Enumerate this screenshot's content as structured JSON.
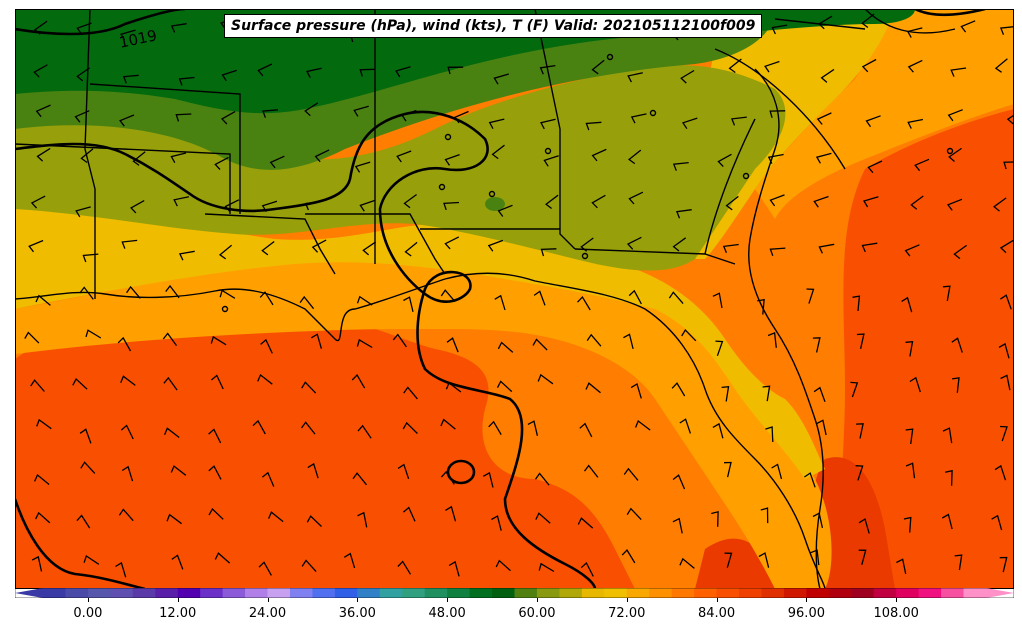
{
  "title": "Surface pressure (hPa), wind (kts), T (F) Valid: 202105112100f009",
  "isobar_label": "1019",
  "colorbar": {
    "min": -6,
    "max": 120,
    "step": 3,
    "ticks": [
      "0.00",
      "12.00",
      "24.00",
      "36.00",
      "48.00",
      "60.00",
      "72.00",
      "84.00",
      "96.00",
      "108.00"
    ],
    "colors": [
      "#3a3aa6",
      "#4a4aa8",
      "#5656ad",
      "#5e4fb0",
      "#5a3aa8",
      "#5a1fa8",
      "#5200b0",
      "#6a30c8",
      "#8a5ad8",
      "#b080e8",
      "#c8a0f0",
      "#8080f0",
      "#5070f0",
      "#3060e8",
      "#3080c8",
      "#30a0a0",
      "#30a080",
      "#209060",
      "#108040",
      "#007020",
      "#006010",
      "#508010",
      "#8a9a10",
      "#b0a808",
      "#e8b800",
      "#f0c000",
      "#f8a800",
      "#ff9000",
      "#ff7800",
      "#ff6000",
      "#f85000",
      "#f04000",
      "#e03000",
      "#d01800",
      "#c00000",
      "#b00010",
      "#a00020",
      "#c00040",
      "#e00060",
      "#f01080",
      "#f850a0",
      "#ff90c8"
    ]
  },
  "colors": {
    "dark_green": "#046a0e",
    "green": "#4a8212",
    "olive": "#97a00a",
    "yellow": "#f0bc00",
    "light_orange": "#ffa000",
    "orange": "#ff7d00",
    "dark_orange": "#f85000",
    "red_orange": "#ea3a00"
  }
}
